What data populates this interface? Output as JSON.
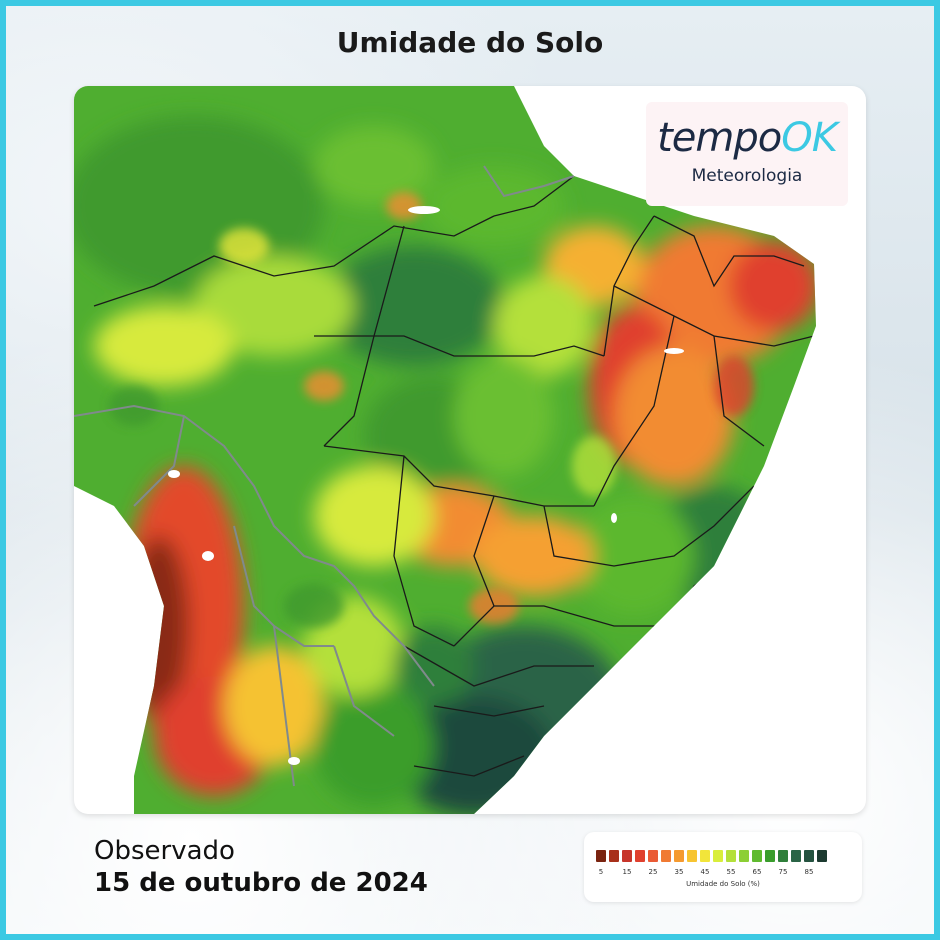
{
  "title": "Umidade do Solo",
  "logo": {
    "word_main": "tempo",
    "word_accent": "OK",
    "subtitle": "Meteorologia"
  },
  "observation": {
    "label": "Observado",
    "date": "15 de outubro de 2024"
  },
  "legend": {
    "title": "Umidade do Solo (%)",
    "tick_labels": [
      "5",
      "15",
      "25",
      "35",
      "45",
      "55",
      "65",
      "75",
      "85"
    ],
    "colors": [
      "#7a2410",
      "#a8301a",
      "#c7352a",
      "#e0402e",
      "#ea5a35",
      "#f07a33",
      "#f59a30",
      "#f7c431",
      "#f2e53a",
      "#d9ee3c",
      "#b4e03a",
      "#8ccf34",
      "#5fba2f",
      "#3a9d2c",
      "#2f7f3a",
      "#2a6446",
      "#24523f",
      "#1c3a30"
    ]
  },
  "colors": {
    "frame": "#3cc9e3",
    "accent": "#3cc9e3",
    "very_dry": "#8a2a12",
    "dry": "#e34a2c",
    "moderate": "#f28c33",
    "medium": "#e6e63a",
    "moist": "#5cb82e",
    "wet": "#2e7f3b",
    "very_wet": "#1f4a3c"
  }
}
